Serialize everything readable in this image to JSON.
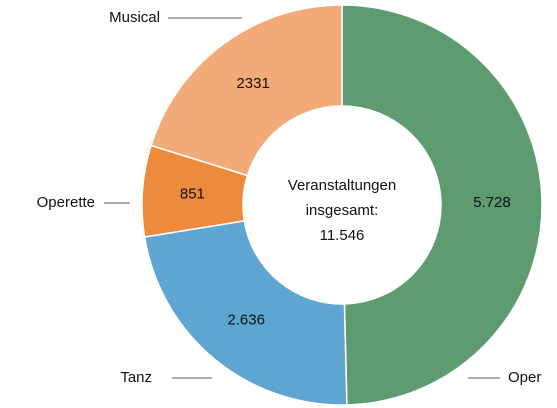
{
  "chart_data": {
    "type": "donut",
    "categories": [
      "Oper",
      "Tanz",
      "Operette",
      "Musical"
    ],
    "values": [
      5728,
      2636,
      851,
      2331
    ],
    "value_labels": [
      "5.728",
      "2.636",
      "851",
      "2331"
    ],
    "colors": [
      "#5e9b70",
      "#5ea6d1",
      "#ee8a3c",
      "#f1aa78"
    ],
    "center_label": [
      "Veranstaltungen",
      "insgesamt:",
      "11.546"
    ]
  }
}
